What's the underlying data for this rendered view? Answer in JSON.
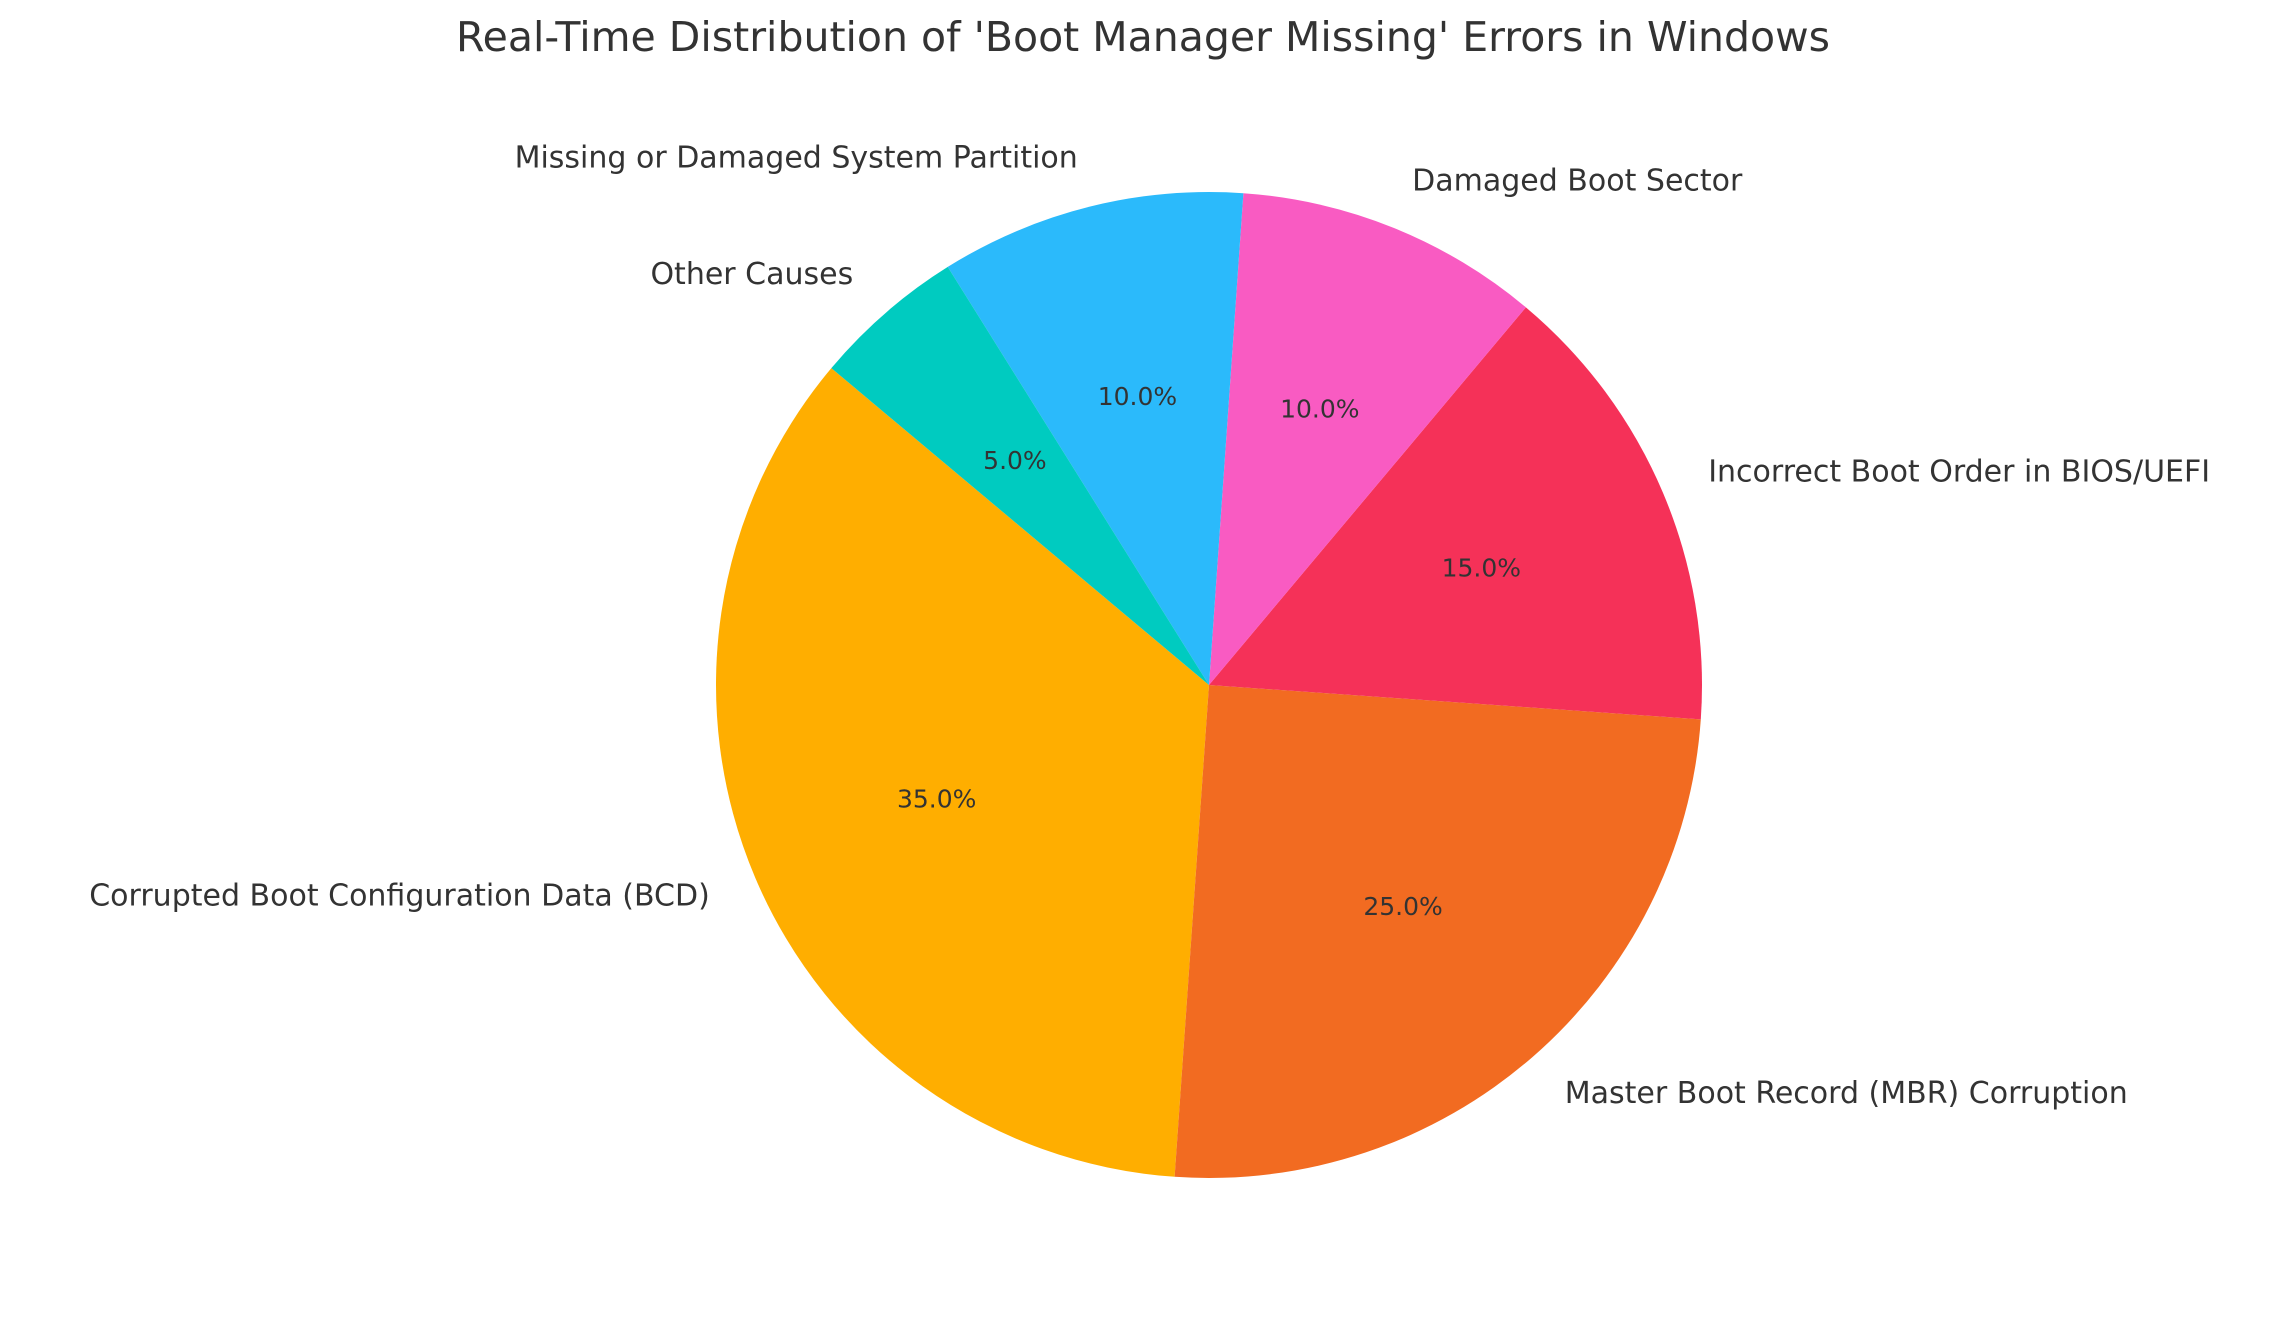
{
  "chart_data": {
    "type": "pie",
    "title": "Real-Time Distribution of 'Boot Manager Missing' Errors in Windows",
    "categories": [
      "Corrupted Boot Configuration Data (BCD)",
      "Master Boot Record (MBR) Corruption",
      "Incorrect Boot Order in BIOS/UEFI",
      "Damaged Boot Sector",
      "Missing or Damaged System Partition",
      "Other Causes"
    ],
    "values": [
      35,
      25,
      15,
      10,
      10,
      5
    ],
    "value_labels": [
      "35.0%",
      "25.0%",
      "15.0%",
      "10.0%",
      "10.0%",
      "5.0%"
    ],
    "colors": [
      "#ffae00",
      "#f26b21",
      "#f53158",
      "#f95bc2",
      "#2bbafb",
      "#00cbc0"
    ],
    "start_angle": 140
  }
}
